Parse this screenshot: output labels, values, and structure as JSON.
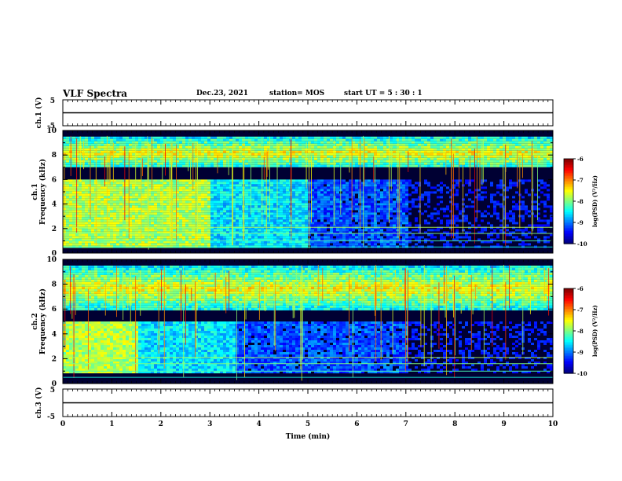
{
  "header": {
    "title": "VLF Spectra",
    "date": "Dec.23, 2021",
    "station": "station= MOS",
    "start": "start  UT  =   5  : 30 : 1"
  },
  "chart_data": [
    {
      "type": "line",
      "name": "waveform-ch1",
      "ylabel": "ch.1 (V)",
      "ylim": [
        -5,
        5
      ],
      "yticks": [
        "5",
        "-5"
      ],
      "x": [
        0,
        10
      ],
      "values": [
        0,
        0
      ]
    },
    {
      "type": "heatmap",
      "name": "spectrogram-ch1",
      "ylabel": "ch.1\nFrequency (kHz)",
      "ylim": [
        0,
        10
      ],
      "yticks": [
        "0",
        "2",
        "4",
        "6",
        "8",
        "10"
      ],
      "xlim": [
        0,
        10
      ],
      "colorbar": {
        "label": "log(PSD) (V²/Hz)",
        "range": [
          -10,
          -6
        ],
        "ticks": [
          "-6",
          "-7",
          "-8",
          "-9",
          "-10"
        ]
      },
      "features": {
        "background_band_khz": [
          0.5,
          6
        ],
        "sferic_band_khz": [
          7,
          9.5
        ],
        "strong_background_until_min": 3
      }
    },
    {
      "type": "heatmap",
      "name": "spectrogram-ch2",
      "ylabel": "ch.2\nFrequency (kHz)",
      "ylim": [
        0,
        10
      ],
      "yticks": [
        "0",
        "2",
        "4",
        "6",
        "8",
        "10"
      ],
      "xlim": [
        0,
        10
      ],
      "colorbar": {
        "label": "log(PSD) (V²/Hz)",
        "range": [
          -10,
          -6
        ],
        "ticks": [
          "-6",
          "-7",
          "-8",
          "-9",
          "-10"
        ]
      },
      "features": {
        "background_band_khz": [
          1,
          5
        ],
        "sferic_band_khz": [
          6,
          9.5
        ],
        "strong_background_until_min": 1.5
      }
    },
    {
      "type": "line",
      "name": "waveform-ch3",
      "ylabel": "ch.3 (V)",
      "ylim": [
        -5,
        5
      ],
      "yticks": [
        "5",
        "-5"
      ],
      "x": [
        0,
        10
      ],
      "values": [
        0,
        0
      ]
    }
  ],
  "xaxis": {
    "label": "Time  (min)",
    "ticks": [
      "0",
      "1",
      "2",
      "3",
      "4",
      "5",
      "6",
      "7",
      "8",
      "9",
      "10"
    ],
    "range": [
      0,
      10
    ]
  },
  "colors": {
    "background": "#000033",
    "frame": "#000000"
  }
}
